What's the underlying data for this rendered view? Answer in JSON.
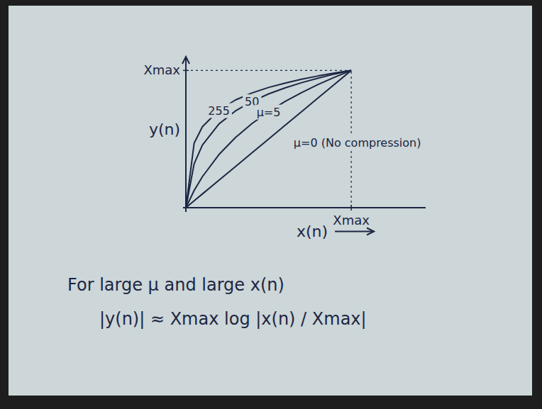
{
  "chart_data": {
    "type": "line",
    "x_label": "x(n)",
    "y_label": "y(n)",
    "xlim": [
      0,
      1.45
    ],
    "ylim": [
      0,
      1.1
    ],
    "xticks": [
      {
        "value": 1,
        "label": "Xmax"
      }
    ],
    "yticks": [
      {
        "value": 1,
        "label": "Xmax"
      }
    ],
    "x": [
      0,
      0.05,
      0.1,
      0.2,
      0.3,
      0.4,
      0.5,
      0.6,
      0.7,
      0.8,
      0.9,
      1
    ],
    "series": [
      {
        "name": "255",
        "color": "#1c2744",
        "values": [
          0,
          0.47,
          0.59,
          0.71,
          0.785,
          0.836,
          0.876,
          0.908,
          0.936,
          0.96,
          0.981,
          1
        ]
      },
      {
        "name": "50",
        "color": "#1c2744",
        "values": [
          0,
          0.32,
          0.456,
          0.61,
          0.705,
          0.774,
          0.829,
          0.873,
          0.911,
          0.944,
          0.974,
          1
        ]
      },
      {
        "name": "μ=5",
        "color": "#1c2744",
        "values": [
          0,
          0.125,
          0.226,
          0.387,
          0.511,
          0.613,
          0.699,
          0.774,
          0.839,
          0.898,
          0.951,
          1
        ]
      },
      {
        "name": "μ=0 (No compression)",
        "color": "#1c2744",
        "values": [
          0,
          0.05,
          0.1,
          0.2,
          0.3,
          0.4,
          0.5,
          0.6,
          0.7,
          0.8,
          0.9,
          1
        ]
      }
    ],
    "annotations": [
      "For large μ and large x(n)",
      "|y(n)| ≈ Xmax log |x(n) / Xmax|"
    ]
  }
}
